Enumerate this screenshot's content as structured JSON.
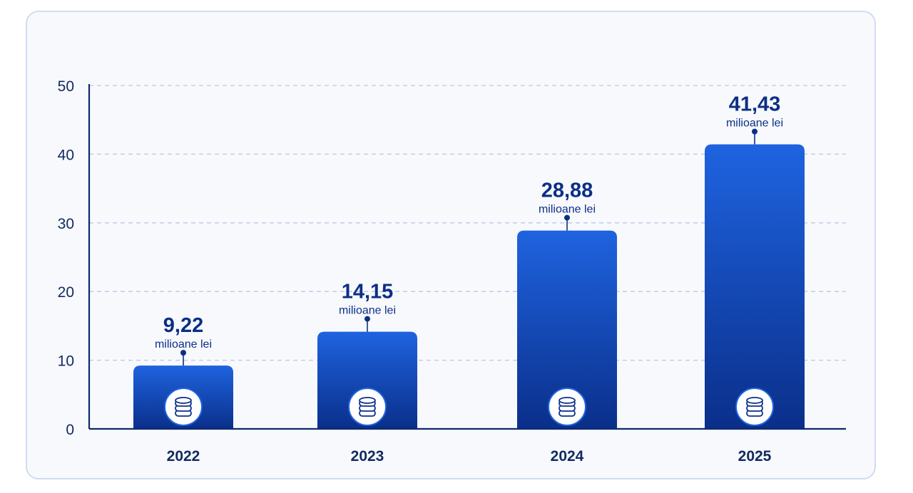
{
  "colors": {
    "bar_top": "#1f63e0",
    "bar_bottom": "#0a2f8a",
    "axis": "#0d2a6e",
    "grid": "#b9c8e6",
    "text": "#0b2f86",
    "tick_text": "#122a63"
  },
  "bar_icon": "coin-stack-icon",
  "chart_data": {
    "type": "bar",
    "title": "",
    "xlabel": "",
    "ylabel": "",
    "ylim": [
      0,
      50
    ],
    "yticks": [
      0,
      10,
      20,
      30,
      40,
      50
    ],
    "grid": true,
    "categories": [
      "2022",
      "2023",
      "2024",
      "2025"
    ],
    "values": [
      9.22,
      14.15,
      28.88,
      41.43
    ],
    "value_labels": [
      "9,22",
      "14,15",
      "28,88",
      "41,43"
    ],
    "unit_label": "milioane lei"
  }
}
